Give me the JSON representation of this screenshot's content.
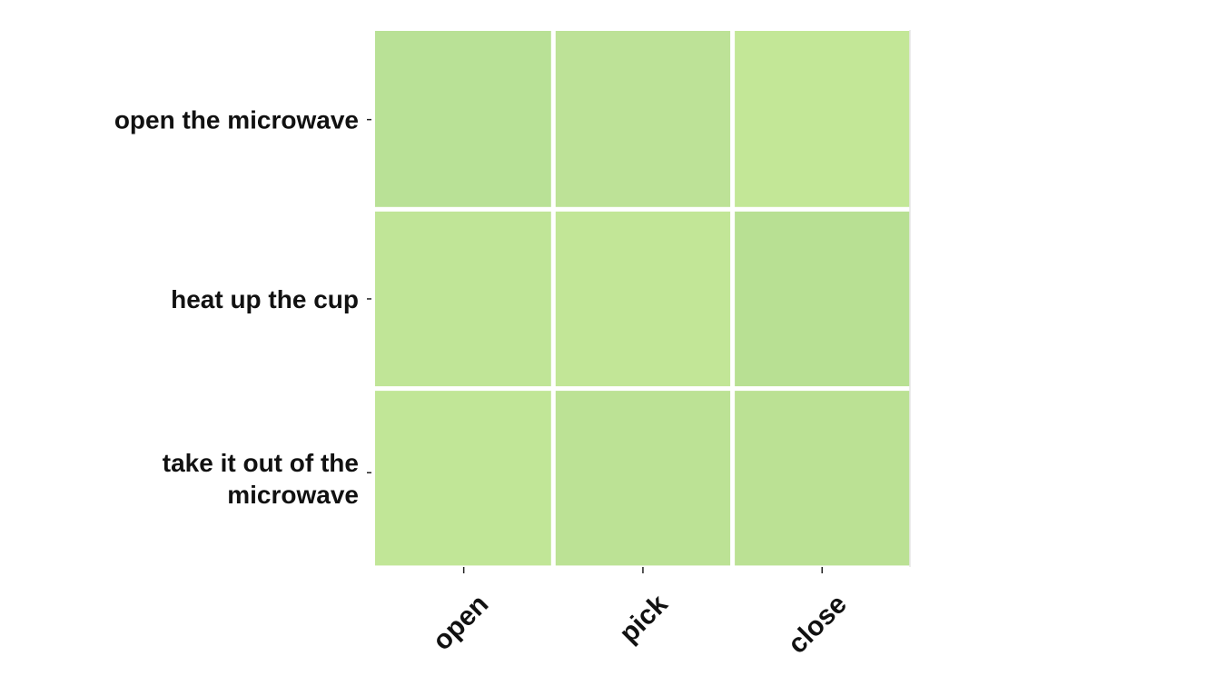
{
  "chart_data": {
    "type": "heatmap",
    "title": "",
    "xlabel": "",
    "ylabel": "",
    "x_categories": [
      "open",
      "pick",
      "close"
    ],
    "y_categories": [
      "open the microwave",
      "heat up the cup",
      "take it out of the microwave"
    ],
    "y_tick_lines": [
      [
        "open the microwave"
      ],
      [
        "heat up the cup"
      ],
      [
        "take it out of the",
        "microwave"
      ]
    ],
    "cell_colors": [
      [
        "#b9e196",
        "#bde297",
        "#c3e797"
      ],
      [
        "#c0e597",
        "#c2e697",
        "#b8e093"
      ],
      [
        "#c1e697",
        "#bce295",
        "#bbe194"
      ]
    ],
    "colorbar": false,
    "grid": false,
    "legend": "none"
  }
}
